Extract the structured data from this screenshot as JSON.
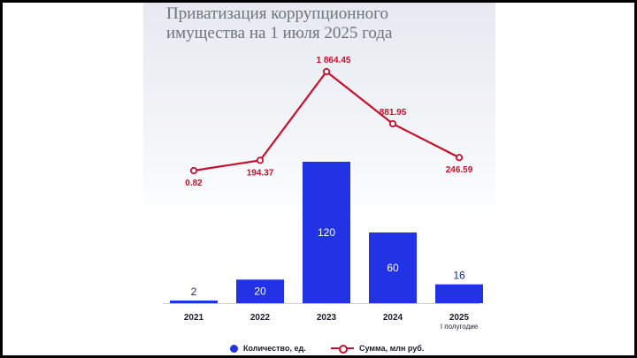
{
  "chart_data": {
    "type": "bar+line",
    "title_lines": [
      "Приватизация коррупционного",
      "имущества на 1 июля 2025 года"
    ],
    "categories": [
      "2021",
      "2022",
      "2023",
      "2024",
      "2025"
    ],
    "category_sublabels": [
      "",
      "",
      "",
      "",
      "I полугодие"
    ],
    "series": [
      {
        "name": "Количество, ед.",
        "kind": "bar",
        "values": [
          2,
          20,
          120,
          60,
          16
        ],
        "labels": [
          "2",
          "20",
          "120",
          "60",
          "16"
        ],
        "color": "#2233e6"
      },
      {
        "name": "Сумма, млн руб.",
        "kind": "line",
        "values": [
          0.82,
          194.37,
          1864.45,
          881.95,
          246.59
        ],
        "labels": [
          "0.82",
          "194.37",
          "1 864.45",
          "881.95",
          "246.59"
        ],
        "color": "#c8102e"
      }
    ],
    "legend_position": "bottom",
    "grid": false
  }
}
